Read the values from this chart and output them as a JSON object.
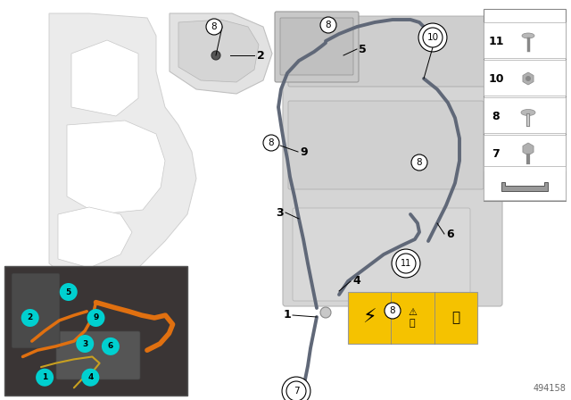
{
  "bg_color": "#ffffff",
  "fig_width": 6.4,
  "fig_height": 4.48,
  "part_id": "494158",
  "cable_color": "#606878",
  "cable_lw": 2.8,
  "callout_fill": "#ffffff",
  "callout_edge": "#000000",
  "cyan_circle": "#00d0d0",
  "inset_bg": "#3a3a4a",
  "orange_cable": "#e07010",
  "yellow_cable": "#c8a020",
  "legend_border": "#888888",
  "warning_yellow": "#f5c200",
  "chassis_fill": "#e8e8e8",
  "chassis_edge": "#c0c0c0",
  "engine_fill": "#d8d8d8",
  "engine_edge": "#b8b8b8",
  "part_fill": "#d0d0d0",
  "part_edge": "#a8a8a8"
}
